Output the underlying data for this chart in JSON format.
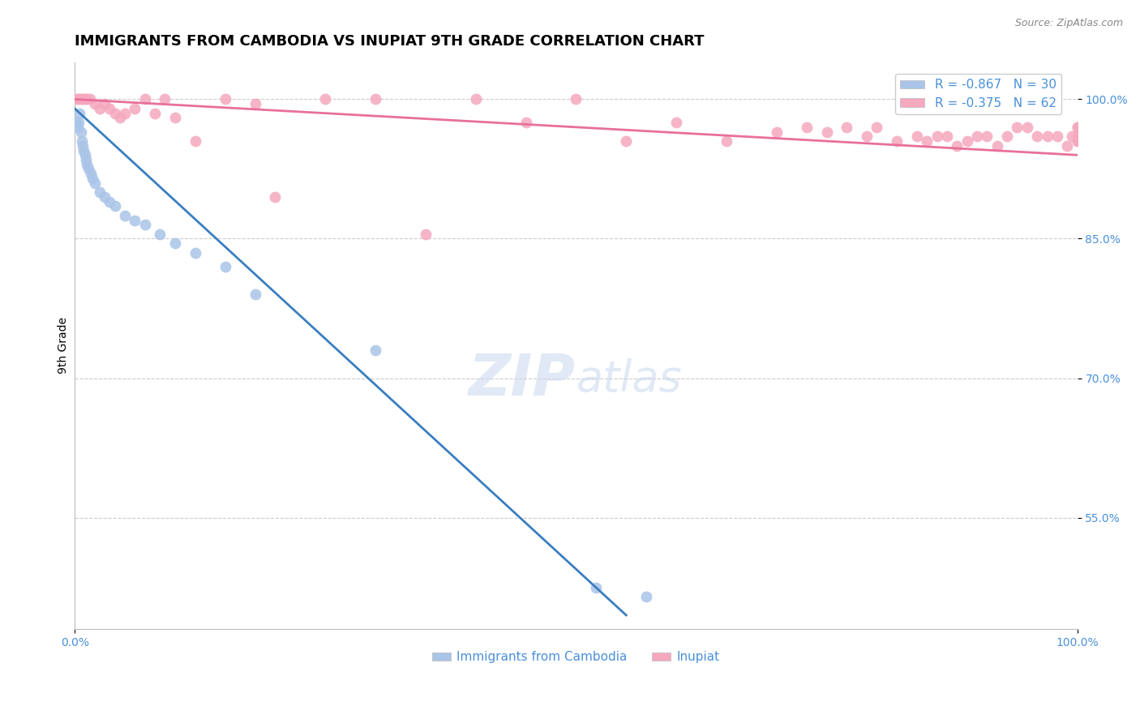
{
  "title": "IMMIGRANTS FROM CAMBODIA VS INUPIAT 9TH GRADE CORRELATION CHART",
  "source_text": "Source: ZipAtlas.com",
  "ylabel": "9th Grade",
  "watermark_zip": "ZIP",
  "watermark_atlas": "atlas",
  "legend_entries": [
    {
      "label": "R = -0.867   N = 30",
      "color": "#aac4e8"
    },
    {
      "label": "R = -0.375   N = 62",
      "color": "#f5a8be"
    }
  ],
  "legend_bottom": [
    {
      "label": "Immigrants from Cambodia",
      "color": "#aac4e8"
    },
    {
      "label": "Inupiat",
      "color": "#f5a8be"
    }
  ],
  "xlim": [
    0.0,
    100.0
  ],
  "ylim": [
    43.0,
    104.0
  ],
  "yticks": [
    55.0,
    70.0,
    85.0,
    100.0
  ],
  "ytick_labels": [
    "55.0%",
    "70.0%",
    "85.0%",
    "100.0%"
  ],
  "xtick_labels": [
    "0.0%",
    "100.0%"
  ],
  "xticks": [
    0.0,
    100.0
  ],
  "grid_color": "#cccccc",
  "background_color": "#ffffff",
  "blue_color": "#aac4e8",
  "pink_color": "#f5a8be",
  "blue_line_color": "#3a7ebf",
  "pink_line_color": "#e8709a",
  "blue_scatter_x": [
    0.15,
    0.3,
    0.4,
    0.5,
    0.6,
    0.7,
    0.8,
    0.9,
    1.0,
    1.1,
    1.2,
    1.4,
    1.6,
    1.8,
    2.0,
    2.5,
    3.0,
    3.5,
    4.0,
    5.0,
    6.0,
    7.0,
    8.5,
    10.0,
    12.0,
    15.0,
    18.0,
    30.0,
    52.0,
    57.0
  ],
  "blue_scatter_y": [
    97.5,
    97.0,
    97.5,
    98.5,
    96.5,
    95.5,
    95.0,
    94.5,
    94.0,
    93.5,
    93.0,
    92.5,
    92.0,
    91.5,
    91.0,
    90.0,
    89.5,
    89.0,
    88.5,
    87.5,
    87.0,
    86.5,
    85.5,
    84.5,
    83.5,
    82.0,
    79.0,
    73.0,
    47.5,
    46.5
  ],
  "pink_scatter_x": [
    0.2,
    0.4,
    0.6,
    0.8,
    1.0,
    1.2,
    1.5,
    2.0,
    2.5,
    3.0,
    3.5,
    4.0,
    4.5,
    5.0,
    6.0,
    7.0,
    8.0,
    9.0,
    10.0,
    12.0,
    15.0,
    18.0,
    20.0,
    25.0,
    30.0,
    35.0,
    40.0,
    45.0,
    50.0,
    55.0,
    60.0,
    65.0,
    70.0,
    73.0,
    75.0,
    77.0,
    79.0,
    80.0,
    82.0,
    84.0,
    85.0,
    86.0,
    87.0,
    88.0,
    89.0,
    90.0,
    91.0,
    92.0,
    93.0,
    94.0,
    95.0,
    96.0,
    97.0,
    98.0,
    99.0,
    99.5,
    100.0,
    100.0,
    100.0,
    100.0,
    100.0,
    100.0
  ],
  "pink_scatter_y": [
    100.0,
    100.0,
    100.0,
    100.0,
    100.0,
    100.0,
    100.0,
    99.5,
    99.0,
    99.5,
    99.0,
    98.5,
    98.0,
    98.5,
    99.0,
    100.0,
    98.5,
    100.0,
    98.0,
    95.5,
    100.0,
    99.5,
    89.5,
    100.0,
    100.0,
    85.5,
    100.0,
    97.5,
    100.0,
    95.5,
    97.5,
    95.5,
    96.5,
    97.0,
    96.5,
    97.0,
    96.0,
    97.0,
    95.5,
    96.0,
    95.5,
    96.0,
    96.0,
    95.0,
    95.5,
    96.0,
    96.0,
    95.0,
    96.0,
    97.0,
    97.0,
    96.0,
    96.0,
    96.0,
    95.0,
    96.0,
    97.0,
    96.0,
    95.5,
    97.0,
    96.0,
    95.5
  ],
  "blue_trendline_x": [
    0.0,
    55.0
  ],
  "blue_trendline_y": [
    99.0,
    44.5
  ],
  "pink_trendline_x": [
    0.0,
    100.0
  ],
  "pink_trendline_y": [
    100.0,
    94.0
  ],
  "title_fontsize": 13,
  "axis_label_fontsize": 10,
  "tick_fontsize": 10,
  "legend_fontsize": 11,
  "watermark_fontsize": 52,
  "watermark_color": "#c8d8ee",
  "watermark_alpha": 0.55,
  "scatter_size": 100
}
